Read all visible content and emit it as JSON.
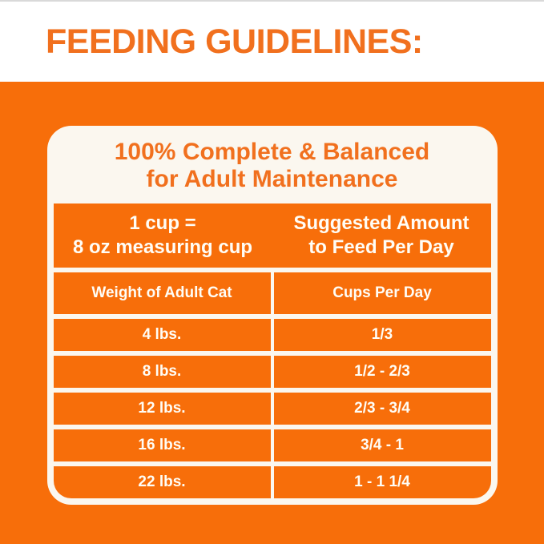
{
  "title": "FEEDING GUIDELINES:",
  "card": {
    "heading_line1": "100% Complete & Balanced",
    "heading_line2": "for Adult Maintenance",
    "intro_row": {
      "left_line1": "1 cup =",
      "left_line2": "8 oz measuring cup",
      "right_line1": "Suggested Amount",
      "right_line2": "to Feed Per Day"
    },
    "table": {
      "col_headers": [
        "Weight of Adult Cat",
        "Cups Per Day"
      ],
      "rows": [
        {
          "weight": "4 lbs.",
          "cups": "1/3"
        },
        {
          "weight": "8 lbs.",
          "cups": "1/2 - 2/3"
        },
        {
          "weight": "12 lbs.",
          "cups": "2/3 - 3/4"
        },
        {
          "weight": "16 lbs.",
          "cups": "3/4 - 1"
        },
        {
          "weight": "22 lbs.",
          "cups": "1 - 1 1/4"
        }
      ]
    }
  },
  "colors": {
    "orange_bg": "#F76E0A",
    "orange_text": "#F1701E",
    "card_white": "#FBF7EF",
    "text_white": "#FFFDF6"
  }
}
